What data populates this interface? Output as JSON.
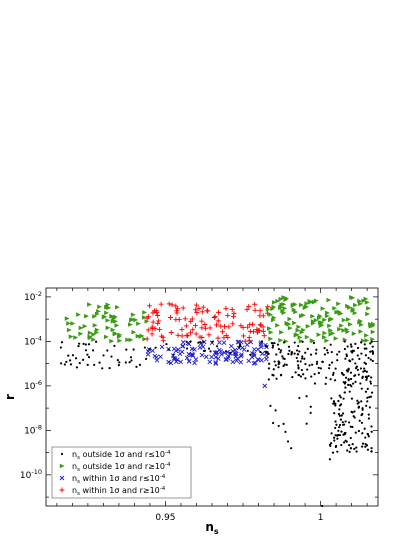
{
  "chart_data": {
    "type": "scatter",
    "xlabel": "n",
    "xlabel_sub": "s",
    "ylabel": "r",
    "yscale": "log",
    "xlim": [
      0.9115,
      1.0185
    ],
    "ylim_exp": [
      -11.4,
      -1.6
    ],
    "x_ticks": [
      {
        "value": 0.95,
        "label": "0.95"
      },
      {
        "value": 1.0,
        "label": "1"
      }
    ],
    "y_ticks": [
      {
        "exp": -2,
        "base": "10",
        "sup": "-2"
      },
      {
        "exp": -4,
        "base": "10",
        "sup": "-4"
      },
      {
        "exp": -6,
        "base": "10",
        "sup": "-6"
      },
      {
        "exp": -8,
        "base": "10",
        "sup": "-8"
      },
      {
        "exp": -10,
        "base": "10",
        "sup": "-10"
      }
    ],
    "grid": false,
    "legend_position": "lower-left",
    "series": [
      {
        "key": "black",
        "color": "#000000",
        "marker": "dot",
        "legend": {
          "pre": "n",
          "sub": "s",
          "mid": " outside 1σ and r≤10",
          "sup": "-4"
        },
        "clusters": [
          {
            "x": [
              0.916,
              0.944
            ],
            "logr": [
              -5.3,
              -4.0
            ],
            "n": 45
          },
          {
            "x": [
              0.944,
              0.983
            ],
            "logr": [
              -4.6,
              -4.0
            ],
            "n": 30
          },
          {
            "x": [
              0.983,
              1.0
            ],
            "logr": [
              -5.7,
              -4.0
            ],
            "n": 80
          },
          {
            "x": [
              0.983,
              1.0
            ],
            "logr": [
              -8.5,
              -5.5
            ],
            "n": 10
          },
          {
            "x": [
              1.0,
              1.017
            ],
            "logr": [
              -6.0,
              -4.0
            ],
            "n": 90
          },
          {
            "x": [
              1.003,
              1.017
            ],
            "logr": [
              -9.0,
              -5.5
            ],
            "n": 130
          }
        ],
        "points": [
          {
            "x": 1.0005,
            "logr": -11.4
          },
          {
            "x": 1.003,
            "logr": -9.3
          },
          {
            "x": 1.004,
            "logr": -9.0
          },
          {
            "x": 1.005,
            "logr": -8.7
          },
          {
            "x": 0.9855,
            "logr": -7.1
          },
          {
            "x": 0.9865,
            "logr": -7.8
          },
          {
            "x": 0.9895,
            "logr": -8.5
          },
          {
            "x": 0.9905,
            "logr": -8.8
          },
          {
            "x": 0.9955,
            "logr": -7.7
          }
        ]
      },
      {
        "key": "green",
        "color": "#3a9b14",
        "marker": "triangle-right",
        "legend": {
          "pre": "n",
          "sub": "s",
          "mid": " outside 1σ and r≥10",
          "sup": "-4"
        },
        "clusters": [
          {
            "x": [
              0.916,
              0.944
            ],
            "logr": [
              -4.0,
              -2.3
            ],
            "n": 65
          },
          {
            "x": [
              0.983,
              1.017
            ],
            "logr": [
              -4.0,
              -2.0
            ],
            "n": 130
          }
        ],
        "points": []
      },
      {
        "key": "blue",
        "color": "#1f1fcc",
        "marker": "x",
        "legend": {
          "pre": "n",
          "sub": "s",
          "mid": " within 1σ and r≤10",
          "sup": "-4"
        },
        "clusters": [
          {
            "x": [
              0.944,
              0.983
            ],
            "logr": [
              -5.0,
              -4.0
            ],
            "n": 110
          }
        ],
        "points": [
          {
            "x": 0.982,
            "logr": -6.0
          }
        ]
      },
      {
        "key": "red",
        "color": "#ff0000",
        "marker": "plus",
        "legend": {
          "pre": "n",
          "sub": "s",
          "mid": " within 1σ and r≥10",
          "sup": "-4"
        },
        "clusters": [
          {
            "x": [
              0.944,
              0.983
            ],
            "logr": [
              -4.0,
              -2.3
            ],
            "n": 110
          }
        ],
        "points": []
      }
    ]
  }
}
